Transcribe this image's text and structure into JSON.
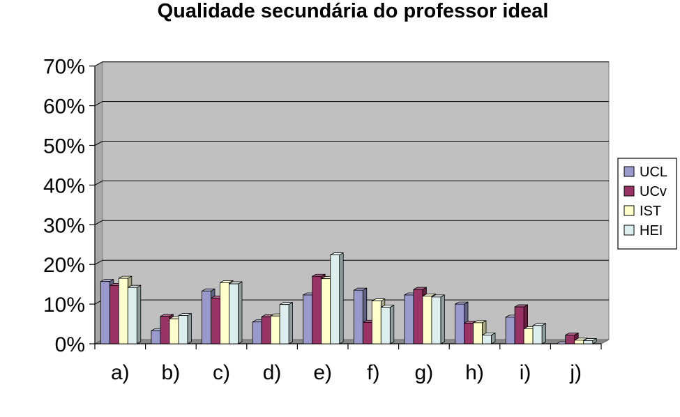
{
  "chart_data": {
    "type": "bar",
    "title": "Qualidade secundária do professor ideal",
    "categories": [
      "a)",
      "b)",
      "c)",
      "d)",
      "e)",
      "f)",
      "g)",
      "h)",
      "i)",
      "j)"
    ],
    "series": [
      {
        "name": "UCL",
        "color": "#9999cc",
        "values": [
          15.7,
          3.3,
          13.3,
          5.5,
          12.3,
          13.5,
          12.3,
          10.0,
          6.7,
          0.0
        ]
      },
      {
        "name": "UCv",
        "color": "#993366",
        "values": [
          14.7,
          6.9,
          11.5,
          6.8,
          17.0,
          5.4,
          13.7,
          5.2,
          9.3,
          2.2
        ]
      },
      {
        "name": "IST",
        "color": "#ffffcc",
        "values": [
          16.5,
          6.3,
          15.4,
          7.0,
          16.4,
          10.8,
          12.0,
          5.3,
          3.8,
          0.9
        ]
      },
      {
        "name": "HEI",
        "color": "#ddeeee",
        "values": [
          14.2,
          7.1,
          15.1,
          9.9,
          22.4,
          9.2,
          11.8,
          2.2,
          4.6,
          0.8
        ]
      }
    ],
    "yticks": [
      "0%",
      "10%",
      "20%",
      "30%",
      "40%",
      "50%",
      "60%",
      "70%"
    ],
    "ylim": [
      0,
      70
    ],
    "grid": true,
    "legend": "right"
  }
}
